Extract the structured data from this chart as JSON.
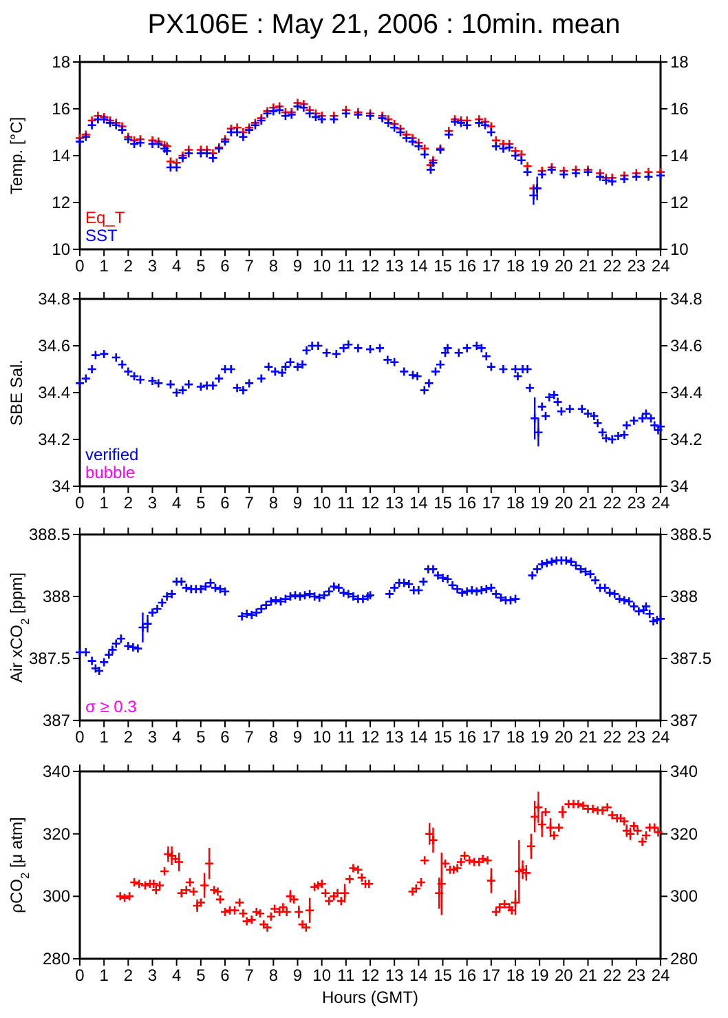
{
  "chart_data": [
    {
      "type": "scatter",
      "title": "PX106E : May 21, 2006 : 10min. mean",
      "ylabel": "Temp. [°C]",
      "marker": "cross",
      "legend": "bottom left",
      "xlim": [
        0,
        24
      ],
      "xticks": [
        0,
        1,
        2,
        3,
        4,
        5,
        6,
        7,
        8,
        9,
        10,
        11,
        12,
        13,
        14,
        15,
        16,
        17,
        18,
        19,
        20,
        21,
        22,
        23,
        24
      ],
      "ylim": [
        10,
        18
      ],
      "yticks": [
        10,
        12,
        14,
        16,
        18
      ],
      "y2lim": [
        10,
        18
      ],
      "y2ticks": [
        10,
        12,
        14,
        16,
        18
      ],
      "x": [
        0,
        0.25,
        0.5,
        0.75,
        1,
        1.25,
        1.5,
        1.75,
        2,
        2.25,
        2.5,
        3,
        3.25,
        3.5,
        3.6,
        3.75,
        4,
        4.25,
        4.5,
        5,
        5.25,
        5.5,
        5.75,
        6,
        6.25,
        6.5,
        6.75,
        7,
        7.25,
        7.5,
        7.75,
        8,
        8.25,
        8.5,
        8.75,
        9,
        9.25,
        9.5,
        9.75,
        10,
        10.5,
        11,
        11.5,
        12,
        12.5,
        12.75,
        13,
        13.25,
        13.5,
        13.75,
        14,
        14.25,
        14.5,
        14.6,
        14.9,
        15.25,
        15.5,
        15.75,
        16,
        16.5,
        16.75,
        17,
        17.2,
        17.5,
        17.75,
        18,
        18.25,
        18.5,
        18.75,
        18.9,
        19.1,
        19.5,
        20,
        20.5,
        21,
        21.5,
        21.75,
        22,
        22.5,
        23,
        23.5,
        24
      ],
      "series": [
        {
          "name": "Eq_T",
          "color": "#ff0000",
          "values": [
            14.75,
            14.9,
            15.5,
            15.7,
            15.65,
            15.5,
            15.4,
            15.25,
            14.8,
            14.65,
            14.7,
            14.65,
            14.6,
            14.45,
            14.4,
            13.75,
            13.7,
            14.0,
            14.25,
            14.25,
            14.25,
            14.1,
            14.35,
            14.7,
            15.15,
            15.2,
            15.0,
            15.2,
            15.4,
            15.6,
            15.9,
            16.05,
            16.1,
            15.85,
            15.85,
            16.25,
            16.2,
            15.95,
            15.8,
            15.7,
            15.7,
            15.95,
            15.85,
            15.8,
            15.7,
            15.55,
            15.35,
            15.15,
            14.9,
            14.75,
            14.55,
            14.3,
            13.6,
            13.8,
            14.3,
            15.05,
            15.55,
            15.5,
            15.5,
            15.55,
            15.45,
            15.25,
            14.65,
            14.5,
            14.5,
            14.2,
            14.05,
            13.55,
            12.6,
            12.6,
            13.35,
            13.5,
            13.35,
            13.4,
            13.4,
            13.25,
            13.05,
            13.05,
            13.15,
            13.25,
            13.3,
            13.3
          ]
        },
        {
          "name": "SST",
          "color": "#0000ff",
          "values": [
            14.6,
            14.8,
            15.3,
            15.55,
            15.55,
            15.4,
            15.3,
            15.1,
            14.7,
            14.5,
            14.55,
            14.5,
            14.5,
            14.3,
            14.2,
            13.5,
            13.5,
            13.9,
            14.1,
            14.1,
            14.1,
            13.9,
            14.3,
            14.6,
            15.0,
            15.0,
            14.8,
            15.1,
            15.3,
            15.5,
            15.8,
            15.9,
            15.95,
            15.7,
            15.75,
            16.1,
            16.05,
            15.8,
            15.65,
            15.55,
            15.55,
            15.8,
            15.75,
            15.7,
            15.6,
            15.4,
            15.2,
            15.0,
            14.75,
            14.6,
            14.4,
            14.05,
            13.4,
            13.7,
            14.25,
            14.9,
            15.45,
            15.4,
            15.3,
            15.4,
            15.3,
            15.0,
            14.4,
            14.3,
            14.35,
            14.0,
            13.8,
            13.3,
            12.3,
            12.6,
            13.2,
            13.4,
            13.2,
            13.25,
            13.3,
            13.1,
            12.95,
            12.9,
            13.0,
            13.1,
            13.1,
            13.15
          ],
          "errors": [
            null,
            null,
            null,
            null,
            null,
            null,
            null,
            null,
            null,
            null,
            null,
            null,
            null,
            null,
            null,
            null,
            null,
            null,
            null,
            null,
            null,
            null,
            null,
            null,
            null,
            null,
            null,
            null,
            null,
            null,
            null,
            null,
            null,
            null,
            null,
            null,
            null,
            null,
            null,
            null,
            null,
            null,
            null,
            null,
            null,
            null,
            null,
            null,
            null,
            null,
            null,
            null,
            null,
            null,
            null,
            null,
            null,
            null,
            null,
            null,
            null,
            null,
            null,
            null,
            null,
            null,
            null,
            null,
            0.4,
            0.5,
            null,
            null,
            null,
            null,
            null,
            null,
            null,
            null,
            null,
            null,
            null,
            null
          ]
        }
      ]
    },
    {
      "type": "scatter",
      "ylabel": "SBE Sal.",
      "marker": "cross",
      "legend": "bottom left",
      "annotations": [
        "bubble"
      ],
      "xlim": [
        0,
        24
      ],
      "xticks": [
        0,
        1,
        2,
        3,
        4,
        5,
        6,
        7,
        8,
        9,
        10,
        11,
        12,
        13,
        14,
        15,
        16,
        17,
        18,
        19,
        20,
        21,
        22,
        23,
        24
      ],
      "ylim": [
        34,
        34.8
      ],
      "yticks": [
        34,
        34.2,
        34.4,
        34.6,
        34.8
      ],
      "y2lim": [
        34,
        34.8
      ],
      "y2ticks": [
        34,
        34.2,
        34.4,
        34.6,
        34.8
      ],
      "series": [
        {
          "name": "verified",
          "color": "#0000ff",
          "x": [
            0,
            0.25,
            0.5,
            0.65,
            1,
            1.5,
            1.75,
            2,
            2.25,
            2.5,
            3,
            3.25,
            3.75,
            4,
            4.25,
            4.5,
            5,
            5.25,
            5.5,
            5.75,
            6,
            6.25,
            6.5,
            6.75,
            7,
            7.5,
            7.8,
            8.07,
            8.36,
            8.5,
            8.7,
            9,
            9.2,
            9.37,
            9.6,
            9.85,
            10.2,
            10.6,
            10.9,
            11.1,
            11.5,
            12,
            12.4,
            12.72,
            13,
            13.4,
            13.76,
            13.95,
            14.24,
            14.43,
            14.7,
            14.9,
            15.1,
            15.2,
            15.66,
            16,
            16.4,
            16.6,
            16.8,
            17,
            17.5,
            18,
            18.1,
            18.3,
            18.5,
            18.6,
            18.8,
            18.95,
            19.1,
            19.25,
            19.4,
            19.6,
            19.75,
            19.9,
            20.25,
            20.75,
            21,
            21.25,
            21.4,
            21.6,
            21.75,
            22,
            22.25,
            22.5,
            22.6,
            22.9,
            23.25,
            23.4,
            23.6,
            23.75,
            23.9,
            24
          ],
          "values": [
            34.44,
            34.46,
            34.5,
            34.56,
            34.565,
            34.55,
            34.52,
            34.49,
            34.47,
            34.455,
            34.45,
            34.44,
            34.435,
            34.4,
            34.41,
            34.435,
            34.425,
            34.43,
            34.43,
            34.46,
            34.5,
            34.5,
            34.42,
            34.41,
            34.44,
            34.46,
            34.51,
            34.49,
            34.485,
            34.51,
            34.53,
            34.51,
            34.52,
            34.58,
            34.6,
            34.6,
            34.57,
            34.565,
            34.59,
            34.605,
            34.59,
            34.585,
            34.59,
            34.54,
            34.53,
            34.49,
            34.475,
            34.47,
            34.41,
            34.44,
            34.49,
            34.52,
            34.57,
            34.59,
            34.57,
            34.59,
            34.6,
            34.59,
            34.555,
            34.51,
            34.5,
            34.5,
            34.47,
            34.5,
            34.5,
            34.42,
            34.29,
            34.23,
            34.34,
            34.3,
            34.38,
            34.39,
            34.36,
            34.32,
            34.33,
            34.33,
            34.31,
            34.3,
            34.27,
            34.23,
            34.205,
            34.2,
            34.215,
            34.22,
            34.26,
            34.28,
            34.29,
            34.31,
            34.29,
            34.26,
            34.24,
            34.255
          ],
          "errors": [
            null,
            null,
            null,
            null,
            null,
            null,
            null,
            null,
            null,
            null,
            null,
            null,
            null,
            null,
            null,
            null,
            null,
            null,
            null,
            null,
            null,
            null,
            null,
            null,
            null,
            null,
            null,
            null,
            null,
            null,
            null,
            null,
            null,
            null,
            null,
            null,
            null,
            null,
            null,
            null,
            null,
            null,
            null,
            null,
            null,
            null,
            null,
            null,
            null,
            null,
            null,
            null,
            null,
            null,
            null,
            null,
            null,
            null,
            null,
            null,
            null,
            null,
            null,
            null,
            null,
            null,
            0.09,
            0.06,
            null,
            null,
            null,
            null,
            null,
            null,
            null,
            null,
            null,
            null,
            null,
            null,
            null,
            null,
            null,
            null,
            null,
            null,
            null,
            null,
            null,
            null,
            null,
            null
          ]
        }
      ]
    },
    {
      "type": "scatter",
      "ylabel": "Air xCO$_{2}$ [ppm]",
      "marker": "cross",
      "annotations": [
        "σ ≥ 0.3"
      ],
      "xlim": [
        0,
        24
      ],
      "xticks": [
        0,
        1,
        2,
        3,
        4,
        5,
        6,
        7,
        8,
        9,
        10,
        11,
        12,
        13,
        14,
        15,
        16,
        17,
        18,
        19,
        20,
        21,
        22,
        23,
        24
      ],
      "ylim": [
        387,
        388.5
      ],
      "yticks": [
        387,
        387.5,
        388,
        388.5
      ],
      "y2lim": [
        387,
        388.5
      ],
      "y2ticks": [
        387,
        387.5,
        388,
        388.5
      ],
      "series": [
        {
          "color": "#0000ff",
          "x": [
            0,
            0.25,
            0.5,
            0.65,
            0.8,
            1.0,
            1.2,
            1.35,
            1.5,
            1.7,
            2.0,
            2.2,
            2.4,
            2.6,
            2.8,
            3.0,
            3.2,
            3.4,
            3.6,
            3.8,
            4.0,
            4.2,
            4.4,
            4.6,
            4.8,
            5.0,
            5.2,
            5.4,
            5.6,
            5.8,
            6.0,
            6.7,
            6.9,
            7.1,
            7.3,
            7.5,
            7.7,
            7.9,
            8.1,
            8.3,
            8.5,
            8.7,
            8.9,
            9.1,
            9.3,
            9.5,
            9.7,
            9.9,
            10.1,
            10.3,
            10.5,
            10.7,
            10.9,
            11.1,
            11.3,
            11.5,
            11.7,
            11.9,
            12.0,
            12.8,
            13.0,
            13.2,
            13.4,
            13.6,
            13.8,
            14.0,
            14.2,
            14.4,
            14.6,
            14.8,
            15.0,
            15.2,
            15.4,
            15.6,
            15.8,
            16.0,
            16.2,
            16.4,
            16.6,
            16.8,
            17.0,
            17.2,
            17.4,
            17.6,
            17.8,
            18.0,
            18.7,
            18.9,
            19.1,
            19.3,
            19.5,
            19.7,
            19.9,
            20.1,
            20.3,
            20.5,
            20.7,
            20.9,
            21.1,
            21.3,
            21.5,
            21.7,
            21.9,
            22.1,
            22.3,
            22.5,
            22.7,
            22.9,
            23.1,
            23.3,
            23.4,
            23.55,
            23.7,
            23.85,
            24.0
          ],
          "values": [
            387.55,
            387.55,
            387.48,
            387.42,
            387.4,
            387.47,
            387.53,
            387.57,
            387.62,
            387.66,
            387.6,
            387.59,
            387.58,
            387.75,
            387.78,
            387.87,
            387.9,
            387.95,
            388.0,
            388.02,
            388.12,
            388.12,
            388.07,
            388.06,
            388.06,
            388.06,
            388.08,
            388.11,
            388.07,
            388.06,
            388.04,
            387.84,
            387.86,
            387.85,
            387.87,
            387.9,
            387.93,
            387.96,
            387.97,
            387.96,
            387.98,
            388.0,
            388.01,
            388.0,
            388.01,
            388.02,
            388.0,
            387.99,
            388.01,
            388.04,
            388.08,
            388.07,
            388.03,
            388.02,
            388.0,
            387.98,
            387.98,
            388.0,
            388.01,
            388.02,
            388.07,
            388.11,
            388.11,
            388.1,
            388.05,
            388.05,
            388.12,
            388.22,
            388.22,
            388.17,
            388.15,
            388.14,
            388.09,
            388.06,
            388.03,
            388.04,
            388.05,
            388.04,
            388.05,
            388.06,
            388.07,
            388.02,
            387.99,
            387.97,
            387.97,
            387.98,
            388.17,
            388.22,
            388.26,
            388.27,
            388.28,
            388.29,
            388.29,
            388.29,
            388.28,
            388.25,
            388.22,
            388.2,
            388.18,
            388.13,
            388.07,
            388.07,
            388.03,
            388.02,
            387.98,
            387.97,
            387.96,
            387.92,
            387.88,
            387.89,
            387.92,
            387.86,
            387.8,
            387.81,
            387.82
          ],
          "errors": [
            null,
            null,
            null,
            null,
            null,
            null,
            null,
            null,
            null,
            null,
            null,
            null,
            null,
            0.12,
            0.07,
            null,
            null,
            null,
            null,
            null,
            null,
            null,
            null,
            null,
            null,
            null,
            null,
            null,
            null,
            null,
            null,
            null,
            null,
            null,
            null,
            null,
            null,
            null,
            null,
            null,
            null,
            null,
            null,
            null,
            null,
            null,
            null,
            null,
            null,
            null,
            null,
            null,
            null,
            null,
            null,
            null,
            null,
            null,
            null,
            null,
            null,
            null,
            null,
            null,
            null,
            null,
            null,
            null,
            null,
            null,
            null,
            null,
            null,
            null,
            null,
            null,
            null,
            null,
            null,
            null,
            null,
            null,
            null,
            null,
            null,
            null,
            null,
            null,
            null,
            null,
            null,
            null,
            null,
            null,
            null,
            null,
            null,
            null,
            null,
            null,
            null,
            null,
            null,
            null,
            null,
            null,
            null,
            null,
            null,
            null,
            null,
            null,
            null,
            null,
            null
          ]
        }
      ]
    },
    {
      "type": "scatter",
      "ylabel": "ρCO$_{2}$ [μ atm]",
      "xlabel": "Hours (GMT)",
      "marker": "cross",
      "xlim": [
        0,
        24
      ],
      "xticks": [
        0,
        1,
        2,
        3,
        4,
        5,
        6,
        7,
        8,
        9,
        10,
        11,
        12,
        13,
        14,
        15,
        16,
        17,
        18,
        19,
        20,
        21,
        22,
        23,
        24
      ],
      "ylim": [
        280,
        340
      ],
      "yticks": [
        280,
        300,
        320,
        340
      ],
      "y2lim": [
        280,
        340
      ],
      "y2ticks": [
        280,
        300,
        320,
        340
      ],
      "series": [
        {
          "color": "#ff0000",
          "x": [
            1.67,
            1.85,
            2.05,
            2.25,
            2.45,
            2.7,
            2.9,
            3.05,
            3.15,
            3.3,
            3.5,
            3.65,
            3.8,
            3.95,
            4.1,
            4.2,
            4.4,
            4.55,
            4.7,
            4.85,
            5.0,
            5.15,
            5.35,
            5.55,
            5.7,
            5.8,
            6.0,
            6.2,
            6.4,
            6.6,
            6.75,
            6.9,
            7.1,
            7.3,
            7.45,
            7.6,
            7.75,
            7.9,
            8.05,
            8.25,
            8.4,
            8.55,
            8.7,
            8.85,
            9.05,
            9.2,
            9.35,
            9.5,
            9.7,
            9.85,
            10.0,
            10.15,
            10.3,
            10.5,
            10.65,
            10.8,
            10.95,
            11.15,
            11.3,
            11.5,
            11.65,
            11.8,
            11.95,
            13.75,
            13.9,
            14.1,
            14.25,
            14.45,
            14.6,
            14.85,
            14.95,
            15.1,
            15.3,
            15.45,
            15.6,
            15.75,
            15.9,
            16.1,
            16.3,
            16.5,
            16.65,
            16.85,
            17.0,
            17.2,
            17.35,
            17.55,
            17.75,
            17.85,
            18.0,
            18.15,
            18.3,
            18.45,
            18.65,
            18.8,
            18.95,
            19.1,
            19.25,
            19.45,
            19.6,
            19.8,
            19.95,
            20.2,
            20.4,
            20.6,
            20.8,
            21.0,
            21.2,
            21.4,
            21.6,
            21.8,
            22.0,
            22.2,
            22.35,
            22.5,
            22.6,
            22.75,
            22.9,
            23.05,
            23.25,
            23.4,
            23.55,
            23.75,
            23.9
          ],
          "values": [
            300,
            299.5,
            300,
            304.5,
            304,
            303.5,
            304,
            304,
            302,
            303.5,
            308,
            313.5,
            313,
            312,
            311,
            301,
            302,
            304.5,
            301.5,
            297,
            298,
            303.5,
            310.5,
            302,
            301.5,
            299,
            295,
            295.5,
            295.5,
            298,
            294.5,
            292,
            292.5,
            295,
            294.5,
            291,
            290,
            293.5,
            296,
            295,
            296.5,
            295,
            300,
            299,
            295,
            291,
            290,
            295.5,
            303,
            303.5,
            304,
            301,
            298.5,
            300,
            301,
            298.5,
            301,
            305.5,
            309,
            308.5,
            306,
            304,
            304,
            301.5,
            302.5,
            304.5,
            311.5,
            320,
            318,
            301,
            304,
            310.5,
            308.5,
            308.5,
            309,
            311,
            313,
            311.5,
            311,
            311,
            312,
            311.5,
            305,
            295,
            296.5,
            297.5,
            296.5,
            295.5,
            298,
            308,
            308.5,
            307.5,
            316,
            325.5,
            328.5,
            323,
            327,
            322,
            319.5,
            322,
            327,
            329.5,
            329.5,
            329.5,
            329,
            328,
            328,
            327.5,
            327.5,
            328.5,
            326,
            325,
            325,
            324,
            321,
            320,
            322.5,
            321,
            317.5,
            319.5,
            322,
            322,
            320.5
          ],
          "errors": [
            null,
            null,
            null,
            null,
            null,
            null,
            null,
            null,
            null,
            null,
            null,
            2.5,
            3,
            null,
            3,
            null,
            null,
            null,
            null,
            2,
            null,
            4,
            5,
            null,
            null,
            null,
            null,
            null,
            null,
            null,
            null,
            null,
            null,
            null,
            null,
            null,
            null,
            null,
            null,
            null,
            null,
            null,
            2,
            null,
            2,
            null,
            null,
            4,
            null,
            null,
            null,
            null,
            null,
            null,
            null,
            null,
            3,
            null,
            null,
            null,
            null,
            null,
            null,
            null,
            null,
            null,
            null,
            3.5,
            4,
            5,
            10,
            null,
            null,
            null,
            null,
            null,
            null,
            null,
            null,
            null,
            null,
            null,
            4,
            null,
            null,
            null,
            null,
            null,
            4,
            10,
            3,
            2.5,
            4,
            5,
            5,
            4,
            null,
            3,
            null,
            null,
            2,
            null,
            null,
            null,
            null,
            null,
            null,
            null,
            null,
            null,
            null,
            null,
            null,
            null,
            2,
            2,
            null,
            null,
            null,
            null,
            null,
            null,
            null
          ]
        }
      ]
    }
  ]
}
